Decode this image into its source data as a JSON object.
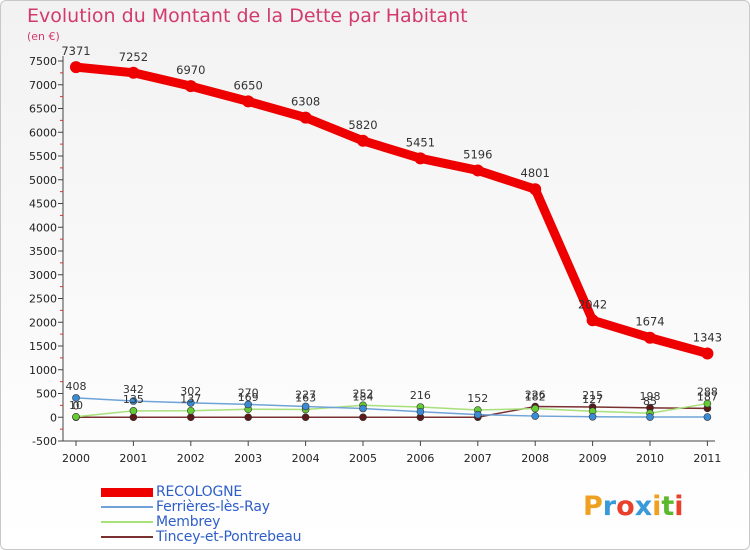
{
  "chart_data": {
    "type": "line",
    "title": "Evolution du Montant de la Dette par Habitant",
    "unit_label": "(en €)",
    "xlabel": "",
    "ylabel": "",
    "categories": [
      "2000",
      "2001",
      "2002",
      "2003",
      "2004",
      "2005",
      "2006",
      "2007",
      "2008",
      "2009",
      "2010",
      "2011"
    ],
    "ylim": [
      -500,
      7500
    ],
    "yticks": [
      -500,
      0,
      500,
      1000,
      1500,
      2000,
      2500,
      3000,
      3500,
      4000,
      4500,
      5000,
      5500,
      6000,
      6500,
      7000,
      7500
    ],
    "grid": false,
    "legend_position": "bottom-left",
    "series": [
      {
        "name": "RECOLOGNE",
        "color": "#ee0000",
        "width": 9,
        "marker": 6,
        "values": [
          7371,
          7252,
          6970,
          6650,
          6308,
          5820,
          5451,
          5196,
          4801,
          2042,
          1674,
          1343
        ],
        "labels": [
          "7371",
          "7252",
          "6970",
          "6650",
          "6308",
          "5820",
          "5451",
          "5196",
          "4801",
          "2042",
          "1674",
          "1343"
        ]
      },
      {
        "name": "Ferrières-lès-Ray",
        "color": "#6fa3d8",
        "width": 1.5,
        "marker": 3.5,
        "dot": "#3a8bd6",
        "values": [
          408,
          342,
          302,
          270,
          227,
          184,
          116,
          54,
          25,
          10,
          5,
          5
        ],
        "labels": [
          "408",
          "342",
          "302",
          "270",
          "227",
          "184",
          "",
          "",
          "",
          "",
          "",
          ""
        ]
      },
      {
        "name": "Membrey",
        "color": "#a8e07a",
        "width": 1.5,
        "marker": 3.5,
        "dot": "#66cc33",
        "values": [
          10,
          135,
          137,
          169,
          163,
          252,
          216,
          152,
          182,
          127,
          85,
          288
        ],
        "labels": [
          "10",
          "135",
          "137",
          "169",
          "163",
          "252",
          "216",
          "152",
          "182",
          "127",
          "85",
          "288"
        ]
      },
      {
        "name": "Tincey-et-Pontrebeau",
        "color": "#7a3030",
        "width": 1.5,
        "marker": 3.5,
        "dot": "#5a1a1a",
        "values": [
          0,
          0,
          0,
          0,
          0,
          0,
          0,
          0,
          226,
          215,
          198,
          187
        ],
        "labels": [
          "0",
          "",
          "",
          "",
          "",
          "",
          "",
          "",
          "226",
          "215",
          "198",
          "187"
        ]
      }
    ]
  },
  "logo": {
    "text": "Proxiti",
    "colors": [
      "#f0a020",
      "#3a9ad9",
      "#e8402a",
      "#3a9ad9",
      "#f0a020",
      "#5cb82c",
      "#e8402a"
    ]
  }
}
